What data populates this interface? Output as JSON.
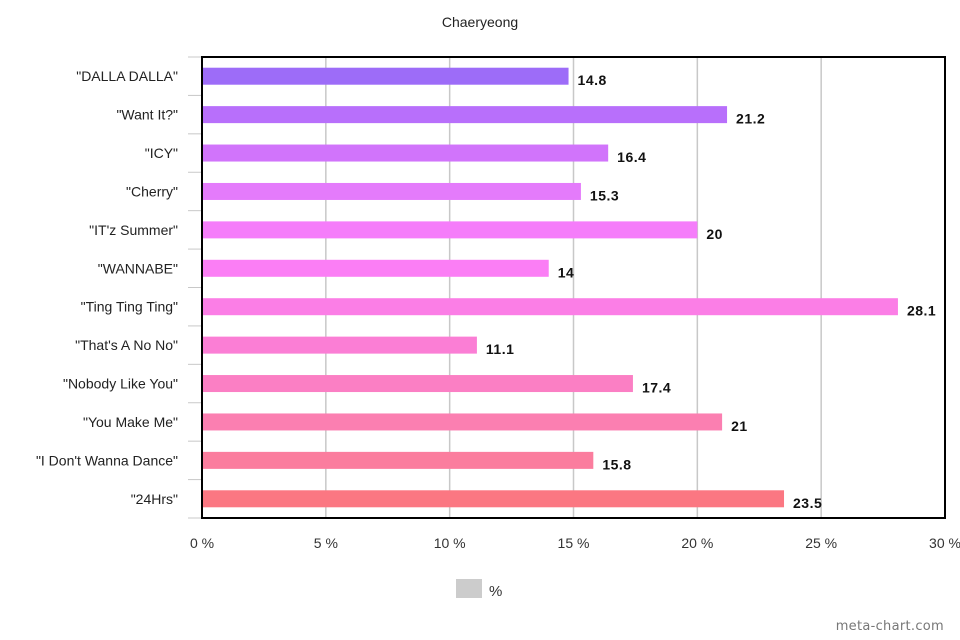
{
  "chart_data": {
    "type": "bar",
    "orientation": "horizontal",
    "title": "Chaeryeong",
    "categories": [
      "\"DALLA DALLA\"",
      "\"Want It?\"",
      "\"ICY\"",
      "\"Cherry\"",
      "\"IT'z Summer\"",
      "\"WANNABE\"",
      "\"Ting Ting Ting\"",
      "\"That's A No No\"",
      "\"Nobody Like You\"",
      "\"You Make Me\"",
      "\"I Don't Wanna Dance\"",
      "\"24Hrs\""
    ],
    "values": [
      14.8,
      21.2,
      16.4,
      15.3,
      20,
      14,
      28.1,
      11.1,
      17.4,
      21,
      15.8,
      23.5
    ],
    "value_labels": [
      "14.8",
      "21.2",
      "16.4",
      "15.3",
      "20",
      "14",
      "28.1",
      "11.1",
      "17.4",
      "21",
      "15.8",
      "23.5"
    ],
    "bar_colors": [
      "#9d6cf8",
      "#b86ffb",
      "#d174fb",
      "#e47bfb",
      "#f57dfa",
      "#fb7ef5",
      "#fb7ee6",
      "#fb7ed5",
      "#fb7fc4",
      "#fb7fb1",
      "#fb7d9e",
      "#fb7782"
    ],
    "xlim": [
      0,
      30
    ],
    "x_ticks": [
      0,
      5,
      10,
      15,
      20,
      25,
      30
    ],
    "x_tick_labels": [
      "0 %",
      "5 %",
      "10 %",
      "15 %",
      "20 %",
      "25 %",
      "30 %"
    ],
    "grid": "vertical",
    "legend": {
      "position": "bottom-center",
      "entries": [
        {
          "label": "%",
          "color": "#cccccc"
        }
      ]
    }
  },
  "watermark": "meta-chart.com"
}
